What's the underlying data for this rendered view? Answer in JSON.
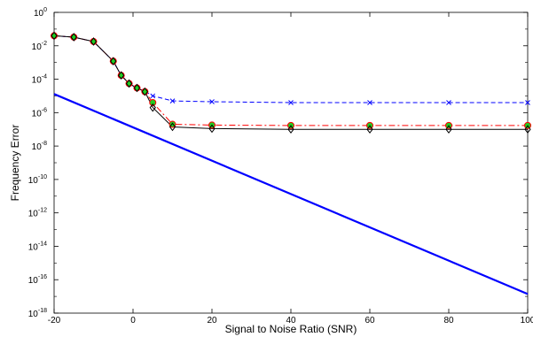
{
  "chart_data": {
    "type": "line",
    "title": "",
    "xlabel": "Signal to Noise Ratio (SNR)",
    "ylabel": "Frequency Error",
    "xlim": [
      -20,
      100
    ],
    "ylim_log10": [
      -18,
      0
    ],
    "yscale": "log",
    "grid": false,
    "legend": "none",
    "x_ticks": [
      -20,
      0,
      20,
      40,
      60,
      80,
      100
    ],
    "y_ticks": [
      {
        "base": "10",
        "exp": "0"
      },
      {
        "base": "10",
        "exp": "-2"
      },
      {
        "base": "10",
        "exp": "-4"
      },
      {
        "base": "10",
        "exp": "-6"
      },
      {
        "base": "10",
        "exp": "-8"
      },
      {
        "base": "10",
        "exp": "-10"
      },
      {
        "base": "10",
        "exp": "-12"
      },
      {
        "base": "10",
        "exp": "-14"
      },
      {
        "base": "10",
        "exp": "-16"
      },
      {
        "base": "10",
        "exp": "-18"
      }
    ],
    "series": [
      {
        "color": "#0000ff",
        "line": "dashed",
        "marker": "x",
        "x": [
          -20,
          -15,
          -10,
          -5,
          -3,
          -1,
          1,
          3,
          5,
          10,
          20,
          40,
          60,
          80,
          100
        ],
        "y": [
          0.04,
          0.033,
          0.018,
          0.0012,
          0.00017,
          5.5e-05,
          2.9e-05,
          1.9e-05,
          1e-05,
          5e-06,
          4.5e-06,
          4e-06,
          4e-06,
          4e-06,
          4e-06
        ]
      },
      {
        "color": "#ff0000",
        "line": "dashdot",
        "marker": "o-green",
        "x": [
          -20,
          -15,
          -10,
          -5,
          -3,
          -1,
          1,
          3,
          5,
          10,
          20,
          40,
          60,
          80,
          100
        ],
        "y": [
          0.04,
          0.033,
          0.018,
          0.0012,
          0.00017,
          5.5e-05,
          3e-05,
          1.8e-05,
          4e-06,
          2e-07,
          1.8e-07,
          1.7e-07,
          1.7e-07,
          1.7e-07,
          1.7e-07
        ]
      },
      {
        "color": "#000000",
        "line": "solid",
        "marker": "diamond",
        "x": [
          -20,
          -15,
          -10,
          -5,
          -3,
          -1,
          1,
          3,
          5,
          10,
          20,
          40,
          60,
          80,
          100
        ],
        "y": [
          0.04,
          0.033,
          0.018,
          0.0012,
          0.00017,
          5.5e-05,
          3e-05,
          1.8e-05,
          2e-06,
          1.4e-07,
          1.1e-07,
          1e-07,
          1e-07,
          1e-07,
          1e-07
        ]
      },
      {
        "color": "#0000ff",
        "line": "solid-thick",
        "marker": "none",
        "x": [
          -20,
          100
        ],
        "y": [
          1.3e-05,
          1.4e-17
        ]
      }
    ]
  }
}
